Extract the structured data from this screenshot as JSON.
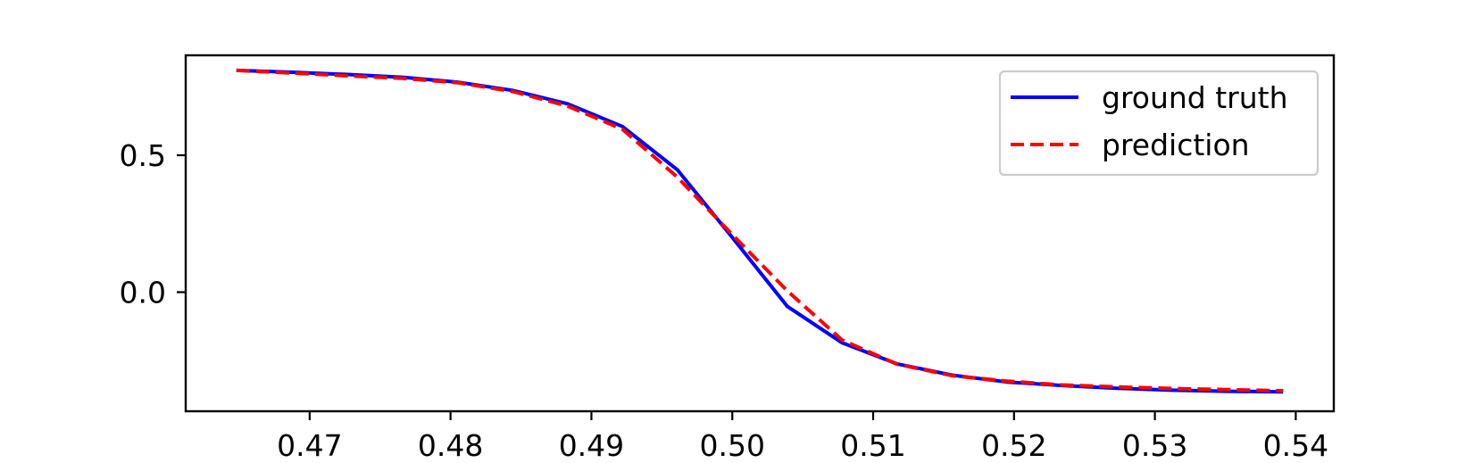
{
  "chart_data": {
    "type": "line",
    "xlim": [
      0.4612,
      0.5427
    ],
    "ylim": [
      -0.435,
      0.865
    ],
    "xticks": [
      0.47,
      0.48,
      0.49,
      0.5,
      0.51,
      0.52,
      0.53,
      0.54
    ],
    "xtick_labels": [
      "0.47",
      "0.48",
      "0.49",
      "0.50",
      "0.51",
      "0.52",
      "0.53",
      "0.54"
    ],
    "yticks": [
      0.0,
      0.5
    ],
    "ytick_labels": [
      "0.0",
      "0.5"
    ],
    "grid": false,
    "legend_position": "top-right",
    "series": [
      {
        "name": "ground truth",
        "color": "#0000ff",
        "style": "solid",
        "x": [
          0.4648,
          0.4688,
          0.4727,
          0.4766,
          0.4805,
          0.4844,
          0.4883,
          0.4922,
          0.4961,
          0.5,
          0.5039,
          0.5078,
          0.5117,
          0.5156,
          0.5195,
          0.5234,
          0.5273,
          0.5312,
          0.5352,
          0.5391
        ],
        "y": [
          0.81,
          0.803,
          0.795,
          0.785,
          0.767,
          0.737,
          0.688,
          0.605,
          0.447,
          0.2,
          -0.052,
          -0.185,
          -0.262,
          -0.303,
          -0.328,
          -0.341,
          -0.351,
          -0.358,
          -0.362,
          -0.364
        ]
      },
      {
        "name": "prediction",
        "color": "#ff0000",
        "style": "dashed",
        "x": [
          0.4648,
          0.4688,
          0.4727,
          0.4766,
          0.4805,
          0.4844,
          0.4883,
          0.4922,
          0.4961,
          0.5,
          0.5039,
          0.5078,
          0.5117,
          0.5156,
          0.5195,
          0.5234,
          0.5273,
          0.5312,
          0.5352,
          0.5391
        ],
        "y": [
          0.81,
          0.8,
          0.79,
          0.781,
          0.765,
          0.733,
          0.68,
          0.595,
          0.42,
          0.21,
          0.005,
          -0.175,
          -0.263,
          -0.305,
          -0.325,
          -0.339,
          -0.346,
          -0.352,
          -0.356,
          -0.36
        ]
      }
    ]
  }
}
